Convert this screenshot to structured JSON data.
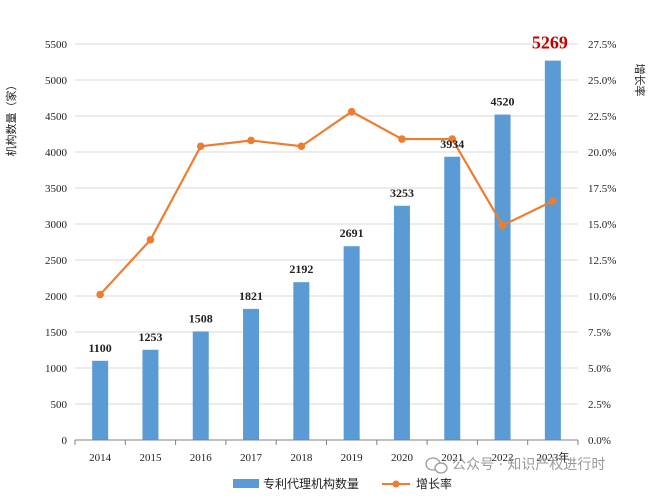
{
  "chart_data": {
    "type": "bar",
    "categories": [
      "2014",
      "2015",
      "2016",
      "2017",
      "2018",
      "2019",
      "2020",
      "2021",
      "2022",
      "2023年"
    ],
    "series": [
      {
        "name": "专利代理机构数量",
        "type": "bar",
        "axis": "left",
        "values": [
          1100,
          1253,
          1508,
          1821,
          2192,
          2691,
          3253,
          3934,
          4520,
          5269
        ],
        "data_labels": [
          "1100",
          "1253",
          "1508",
          "1821",
          "2192",
          "2691",
          "3253",
          "3934",
          "4520",
          "5269"
        ],
        "color": "#5b9bd5"
      },
      {
        "name": "增长率",
        "type": "line",
        "axis": "right",
        "values": [
          10.1,
          13.9,
          20.4,
          20.8,
          20.4,
          22.8,
          20.9,
          20.9,
          14.9,
          16.6
        ],
        "color": "#ed7d31"
      }
    ],
    "highlight": {
      "index": 9,
      "color": "#c00000"
    },
    "ylabel": "机构数量（家）",
    "y2label": "增长率",
    "ylim": [
      0,
      5500
    ],
    "y2lim": [
      0,
      27.5
    ],
    "yticks": [
      "0",
      "500",
      "1000",
      "1500",
      "2000",
      "2500",
      "3000",
      "3500",
      "4000",
      "4500",
      "5000",
      "5500"
    ],
    "y2ticks": [
      "0.0%",
      "2.5%",
      "5.0%",
      "7.5%",
      "10.0%",
      "12.5%",
      "15.0%",
      "17.5%",
      "20.0%",
      "22.5%",
      "25.0%",
      "27.5%"
    ],
    "grid": true,
    "legend_position": "bottom"
  },
  "watermark": {
    "text": "公众号 · 知识产权进行时"
  }
}
